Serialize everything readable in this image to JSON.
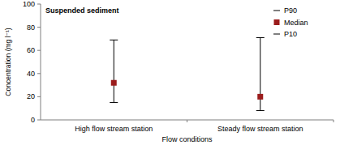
{
  "chart_data": {
    "type": "errorbar",
    "title": "Suspended sediment",
    "x_label": "Flow conditions",
    "y_label": "Concentration (mg l⁻¹)",
    "categories": [
      "High flow stream station",
      "Steady flow stream station"
    ],
    "series": [
      {
        "name": "P90",
        "color": "#000000",
        "marker": "dash",
        "values": [
          69,
          71
        ]
      },
      {
        "name": "Median",
        "color": "#9b1c1c",
        "marker": "square",
        "values": [
          32,
          20
        ]
      },
      {
        "name": "P10",
        "color": "#000000",
        "marker": "dash",
        "values": [
          15,
          8
        ]
      }
    ],
    "ylim": [
      0,
      100
    ],
    "yticks": [
      0,
      20,
      40,
      60,
      80,
      100
    ],
    "grid": false,
    "legend": "top-right"
  }
}
